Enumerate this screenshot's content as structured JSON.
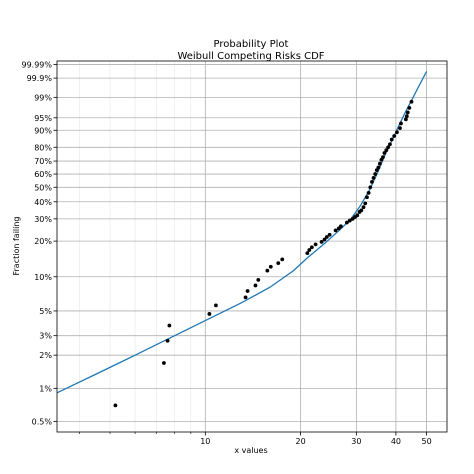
{
  "chart_data": {
    "type": "scatter",
    "title": "Probability Plot",
    "subtitle": "Weibull Competing Risks CDF",
    "xlabel": "x values",
    "ylabel": "Fraction failing",
    "x_scale": "log",
    "y_scale": "weibull",
    "xlim": [
      3.4,
      58
    ],
    "ylim": [
      0.004,
      0.99995
    ],
    "grid": true,
    "x_major_ticks": [
      {
        "value": 10,
        "label": "10"
      },
      {
        "value": 20,
        "label": "20"
      },
      {
        "value": 30,
        "label": "30"
      },
      {
        "value": 40,
        "label": "40"
      },
      {
        "value": 50,
        "label": "50"
      }
    ],
    "x_minor_ticks": [
      4,
      5,
      6,
      7,
      8,
      9
    ],
    "y_ticks": [
      {
        "value": 0.005,
        "label": "0.5%"
      },
      {
        "value": 0.01,
        "label": "1%"
      },
      {
        "value": 0.02,
        "label": "2%"
      },
      {
        "value": 0.03,
        "label": "3%"
      },
      {
        "value": 0.05,
        "label": "5%"
      },
      {
        "value": 0.1,
        "label": "10%"
      },
      {
        "value": 0.2,
        "label": "20%"
      },
      {
        "value": 0.3,
        "label": "30%"
      },
      {
        "value": 0.4,
        "label": "40%"
      },
      {
        "value": 0.5,
        "label": "50%"
      },
      {
        "value": 0.6,
        "label": "60%"
      },
      {
        "value": 0.7,
        "label": "70%"
      },
      {
        "value": 0.8,
        "label": "80%"
      },
      {
        "value": 0.9,
        "label": "90%"
      },
      {
        "value": 0.95,
        "label": "95%"
      },
      {
        "value": 0.99,
        "label": "99%"
      },
      {
        "value": 0.999,
        "label": "99.9%"
      },
      {
        "value": 0.9999,
        "label": "99.99%"
      }
    ],
    "line_color": "#1f77b4",
    "point_color": "#000000",
    "fitted_line": {
      "x": [
        3.4,
        4.5,
        6,
        8,
        10,
        13,
        16,
        19,
        21,
        24,
        27,
        29,
        31,
        33,
        35,
        37,
        39,
        41,
        43,
        45,
        47,
        50
      ],
      "y": [
        0.0091,
        0.0134,
        0.02,
        0.03,
        0.041,
        0.059,
        0.081,
        0.113,
        0.145,
        0.195,
        0.255,
        0.305,
        0.38,
        0.48,
        0.61,
        0.75,
        0.85,
        0.925,
        0.968,
        0.988,
        0.9965,
        0.99965
      ]
    },
    "points": {
      "x": [
        5.2,
        7.4,
        7.6,
        7.7,
        10.3,
        10.8,
        13.4,
        13.6,
        14.4,
        14.7,
        15.7,
        16.1,
        17.0,
        17.5,
        21.0,
        21.3,
        21.7,
        22.3,
        23.3,
        23.8,
        24.2,
        24.7,
        25.8,
        26.4,
        26.8,
        28.0,
        28.6,
        29.2,
        29.7,
        30.2,
        30.7,
        31.1,
        31.6,
        32.0,
        32.4,
        32.8,
        33.2,
        33.6,
        34.0,
        34.4,
        34.8,
        35.2,
        35.6,
        36.0,
        36.4,
        36.8,
        37.3,
        37.8,
        38.3,
        38.8,
        39.5,
        40.3,
        41.2,
        41.5,
        43.0,
        43.3,
        43.6,
        44.1,
        44.8
      ],
      "y": [
        0.007,
        0.017,
        0.027,
        0.037,
        0.047,
        0.056,
        0.066,
        0.075,
        0.084,
        0.094,
        0.113,
        0.122,
        0.131,
        0.141,
        0.159,
        0.169,
        0.178,
        0.188,
        0.197,
        0.206,
        0.216,
        0.225,
        0.244,
        0.253,
        0.263,
        0.281,
        0.291,
        0.3,
        0.31,
        0.319,
        0.338,
        0.347,
        0.366,
        0.39,
        0.43,
        0.46,
        0.5,
        0.54,
        0.57,
        0.6,
        0.63,
        0.65,
        0.68,
        0.71,
        0.73,
        0.76,
        0.78,
        0.8,
        0.82,
        0.85,
        0.87,
        0.89,
        0.91,
        0.93,
        0.945,
        0.955,
        0.965,
        0.975,
        0.985
      ]
    }
  }
}
